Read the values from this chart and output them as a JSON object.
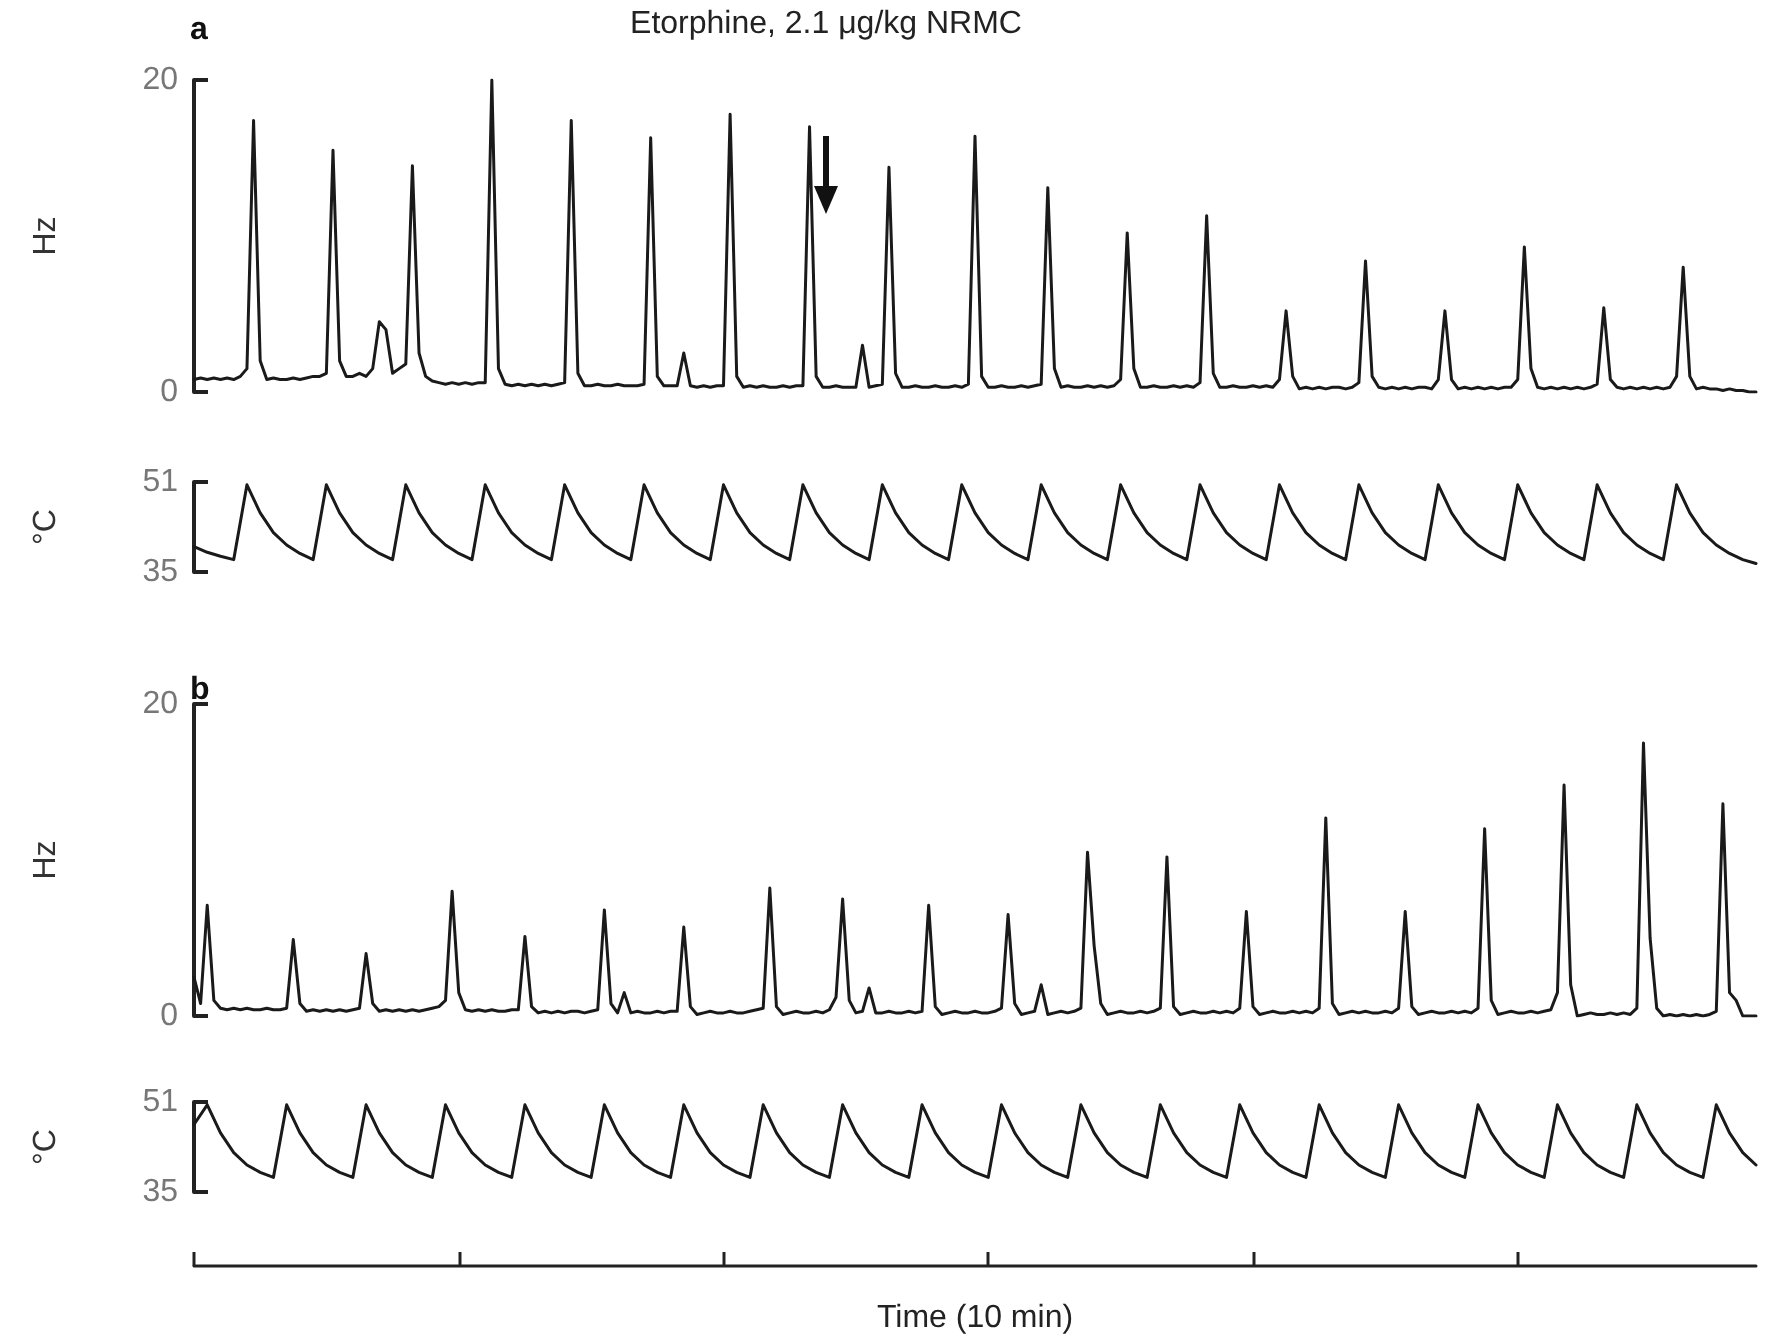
{
  "chart_data": [
    {
      "type": "line",
      "title": "a",
      "ylabel": "Hz",
      "color": "#1a1a1a",
      "line_style": "solid",
      "grid": false,
      "tick_labels": "y",
      "ylim": [
        0,
        20
      ],
      "yticks": [
        0,
        20
      ],
      "annotations": [
        "Etorphine, 2.1 μg/kg NRMC"
      ],
      "categories": [
        null,
        null,
        null,
        null,
        null,
        null,
        null,
        null,
        null,
        null,
        null,
        null,
        null,
        null,
        null,
        null,
        null,
        null,
        null,
        null,
        null,
        null,
        null,
        null,
        null,
        null,
        null,
        null,
        null,
        null,
        null,
        null,
        null,
        null,
        null,
        null,
        null,
        null,
        null,
        null,
        null,
        null,
        null,
        null,
        null,
        null,
        null,
        null,
        null,
        null,
        null,
        null,
        null,
        null,
        null,
        null,
        null,
        null,
        null,
        null,
        null,
        null,
        null,
        null,
        null,
        null,
        null,
        null,
        null,
        null,
        null,
        null,
        null,
        null,
        null,
        null,
        null,
        null,
        null,
        null,
        null,
        null,
        null,
        null,
        null,
        null,
        null,
        null,
        null,
        null,
        null,
        null,
        null,
        null,
        null,
        null,
        null,
        null,
        null,
        null,
        null,
        null,
        null,
        null,
        null,
        null,
        null,
        null,
        null,
        null,
        null,
        null,
        null,
        null,
        null,
        null,
        null,
        null,
        null,
        null,
        null,
        null,
        null,
        null,
        null,
        null,
        null,
        null,
        null,
        null,
        null,
        null,
        null,
        null,
        null,
        null,
        null,
        null,
        null,
        null,
        null,
        null,
        null,
        null,
        null,
        null,
        null,
        null,
        null,
        null,
        null,
        null,
        null,
        null,
        null,
        null,
        null,
        null,
        null,
        null,
        null,
        null,
        null,
        null,
        null,
        null,
        null,
        null,
        null,
        null,
        null,
        null,
        null,
        null,
        null,
        null,
        null,
        null,
        null,
        null,
        null,
        null,
        null,
        null,
        null,
        null,
        null,
        null,
        null,
        null,
        null,
        null,
        null,
        null,
        null,
        null,
        null,
        null,
        null,
        null,
        null,
        null,
        null,
        null,
        null,
        null,
        null,
        null,
        null,
        null,
        null,
        null,
        null,
        null,
        null,
        null,
        null,
        null,
        null,
        null,
        null,
        null,
        null,
        null,
        null,
        null,
        null,
        null,
        null,
        null,
        null,
        null,
        null,
        null,
        null,
        null,
        null
      ],
      "values": [
        0.8,
        0.9,
        0.8,
        0.9,
        0.8,
        0.9,
        0.8,
        1.0,
        1.5,
        17.4,
        2.0,
        0.8,
        0.9,
        0.8,
        0.8,
        0.9,
        0.8,
        0.9,
        1.0,
        1.0,
        1.2,
        15.5,
        2.0,
        1.0,
        1.0,
        1.2,
        1.0,
        1.5,
        4.5,
        4.0,
        1.2,
        1.5,
        1.8,
        14.5,
        2.5,
        1.0,
        0.7,
        0.6,
        0.5,
        0.6,
        0.5,
        0.6,
        0.5,
        0.6,
        0.6,
        20,
        1.5,
        0.5,
        0.4,
        0.5,
        0.4,
        0.5,
        0.4,
        0.5,
        0.4,
        0.5,
        0.6,
        17.4,
        1.2,
        0.4,
        0.4,
        0.5,
        0.4,
        0.4,
        0.5,
        0.4,
        0.4,
        0.4,
        0.5,
        16.3,
        1.0,
        0.4,
        0.4,
        0.4,
        2.5,
        0.4,
        0.3,
        0.4,
        0.3,
        0.4,
        0.4,
        17.8,
        1.0,
        0.3,
        0.4,
        0.3,
        0.4,
        0.3,
        0.3,
        0.4,
        0.3,
        0.4,
        0.4,
        17.0,
        1.0,
        0.3,
        0.3,
        0.4,
        0.3,
        0.3,
        0.3,
        3.0,
        0.3,
        0.4,
        0.5,
        14.4,
        1.2,
        0.3,
        0.3,
        0.4,
        0.3,
        0.3,
        0.4,
        0.3,
        0.3,
        0.4,
        0.3,
        0.5,
        16.4,
        1.0,
        0.3,
        0.3,
        0.4,
        0.3,
        0.3,
        0.4,
        0.3,
        0.4,
        0.5,
        13.1,
        1.5,
        0.3,
        0.4,
        0.3,
        0.3,
        0.4,
        0.3,
        0.4,
        0.3,
        0.4,
        0.8,
        10.2,
        1.5,
        0.3,
        0.3,
        0.4,
        0.3,
        0.3,
        0.4,
        0.3,
        0.4,
        0.3,
        0.6,
        11.3,
        1.2,
        0.3,
        0.3,
        0.4,
        0.3,
        0.3,
        0.4,
        0.3,
        0.4,
        0.3,
        0.8,
        5.2,
        1.0,
        0.2,
        0.3,
        0.2,
        0.3,
        0.2,
        0.3,
        0.3,
        0.2,
        0.3,
        0.6,
        8.4,
        1.0,
        0.3,
        0.2,
        0.3,
        0.2,
        0.3,
        0.2,
        0.3,
        0.3,
        0.2,
        0.8,
        5.2,
        0.8,
        0.2,
        0.3,
        0.2,
        0.3,
        0.2,
        0.3,
        0.2,
        0.3,
        0.3,
        0.8,
        9.3,
        1.5,
        0.3,
        0.2,
        0.3,
        0.2,
        0.3,
        0.2,
        0.3,
        0.2,
        0.3,
        0.5,
        5.4,
        0.8,
        0.3,
        0.2,
        0.3,
        0.2,
        0.3,
        0.2,
        0.3,
        0.2,
        0.3,
        1.0,
        8.0,
        1.0,
        0.2,
        0.3,
        0.2,
        0.2,
        0.1,
        0.2,
        0.1,
        0.1,
        0.0,
        0.0
      ]
    },
    {
      "type": "line",
      "ylabel": "°C",
      "color": "#1a1a1a",
      "line_style": "solid",
      "grid": false,
      "tick_labels": "y",
      "ylim": [
        35,
        51
      ],
      "yticks": [
        35,
        51
      ],
      "categories": [
        null,
        null,
        null,
        null,
        null,
        null,
        null,
        null,
        null,
        null,
        null,
        null,
        null,
        null,
        null,
        null,
        null,
        null,
        null,
        null,
        null,
        null,
        null,
        null,
        null,
        null,
        null,
        null,
        null,
        null,
        null,
        null,
        null,
        null,
        null,
        null,
        null,
        null,
        null,
        null,
        null,
        null,
        null,
        null,
        null,
        null,
        null,
        null,
        null,
        null,
        null,
        null,
        null,
        null,
        null,
        null,
        null,
        null,
        null,
        null,
        null,
        null,
        null,
        null,
        null,
        null,
        null,
        null,
        null,
        null,
        null,
        null,
        null,
        null,
        null,
        null,
        null,
        null,
        null,
        null,
        null,
        null,
        null,
        null,
        null,
        null,
        null,
        null,
        null,
        null,
        null,
        null,
        null,
        null,
        null,
        null,
        null,
        null,
        null,
        null,
        null,
        null,
        null,
        null,
        null,
        null,
        null,
        null,
        null,
        null,
        null,
        null,
        null,
        null,
        null,
        null,
        null,
        null,
        null
      ],
      "values": [
        39.5,
        38.5,
        37.8,
        37.2,
        50.5,
        45.5,
        42,
        39.8,
        38.3,
        37.2,
        50.5,
        45.5,
        42,
        39.8,
        38.3,
        37.2,
        50.5,
        45.5,
        42,
        39.8,
        38.3,
        37.2,
        50.5,
        45.5,
        42,
        39.8,
        38.3,
        37.2,
        50.5,
        45.5,
        42,
        39.8,
        38.3,
        37.2,
        50.5,
        45.5,
        42,
        39.8,
        38.3,
        37.2,
        50.5,
        45.5,
        42,
        39.8,
        38.3,
        37.2,
        50.5,
        45.5,
        42,
        39.8,
        38.3,
        37.2,
        50.5,
        45.5,
        42,
        39.8,
        38.3,
        37.2,
        50.5,
        45.5,
        42,
        39.8,
        38.3,
        37.2,
        50.5,
        45.5,
        42,
        39.8,
        38.3,
        37.2,
        50.5,
        45.5,
        42,
        39.8,
        38.3,
        37.2,
        50.5,
        45.5,
        42,
        39.8,
        38.3,
        37.2,
        50.5,
        45.5,
        42,
        39.8,
        38.3,
        37.2,
        50.5,
        45.5,
        42,
        39.8,
        38.3,
        37.2,
        50.5,
        45.5,
        42,
        39.8,
        38.3,
        37.2,
        50.5,
        45.5,
        42,
        39.8,
        38.3,
        37.2,
        50.5,
        45.5,
        42,
        39.8,
        38.3,
        37.2,
        50.5,
        45.5,
        42,
        39.8,
        38.3,
        37.2,
        36.5
      ]
    },
    {
      "type": "line",
      "title": "b",
      "ylabel": "Hz",
      "color": "#1a1a1a",
      "line_style": "solid",
      "grid": false,
      "tick_labels": "y",
      "ylim": [
        0,
        20
      ],
      "yticks": [
        0,
        20
      ],
      "categories": [
        null,
        null,
        null,
        null,
        null,
        null,
        null,
        null,
        null,
        null,
        null,
        null,
        null,
        null,
        null,
        null,
        null,
        null,
        null,
        null,
        null,
        null,
        null,
        null,
        null,
        null,
        null,
        null,
        null,
        null,
        null,
        null,
        null,
        null,
        null,
        null,
        null,
        null,
        null,
        null,
        null,
        null,
        null,
        null,
        null,
        null,
        null,
        null,
        null,
        null,
        null,
        null,
        null,
        null,
        null,
        null,
        null,
        null,
        null,
        null,
        null,
        null,
        null,
        null,
        null,
        null,
        null,
        null,
        null,
        null,
        null,
        null,
        null,
        null,
        null,
        null,
        null,
        null,
        null,
        null,
        null,
        null,
        null,
        null,
        null,
        null,
        null,
        null,
        null,
        null,
        null,
        null,
        null,
        null,
        null,
        null,
        null,
        null,
        null,
        null,
        null,
        null,
        null,
        null,
        null,
        null,
        null,
        null,
        null,
        null,
        null,
        null,
        null,
        null,
        null,
        null,
        null,
        null,
        null,
        null,
        null,
        null,
        null,
        null,
        null,
        null,
        null,
        null,
        null,
        null,
        null,
        null,
        null,
        null,
        null,
        null,
        null,
        null,
        null,
        null,
        null,
        null,
        null,
        null,
        null,
        null,
        null,
        null,
        null,
        null,
        null,
        null,
        null,
        null,
        null,
        null,
        null,
        null,
        null,
        null,
        null,
        null,
        null,
        null,
        null,
        null,
        null,
        null,
        null,
        null,
        null,
        null,
        null,
        null,
        null,
        null,
        null,
        null,
        null,
        null,
        null,
        null,
        null,
        null,
        null,
        null,
        null,
        null,
        null,
        null,
        null,
        null,
        null,
        null,
        null,
        null,
        null,
        null,
        null,
        null,
        null,
        null,
        null,
        null,
        null,
        null,
        null,
        null,
        null,
        null,
        null,
        null,
        null,
        null,
        null,
        null,
        null,
        null,
        null,
        null,
        null,
        null,
        null,
        null,
        null,
        null,
        null,
        null,
        null,
        null,
        null,
        null,
        null,
        null,
        null,
        null,
        null
      ],
      "values": [
        2.5,
        0.8,
        7.1,
        1.0,
        0.5,
        0.4,
        0.5,
        0.4,
        0.5,
        0.4,
        0.4,
        0.5,
        0.4,
        0.4,
        0.5,
        4.9,
        0.8,
        0.3,
        0.4,
        0.3,
        0.4,
        0.3,
        0.4,
        0.3,
        0.4,
        0.5,
        4.0,
        0.8,
        0.3,
        0.4,
        0.3,
        0.4,
        0.3,
        0.4,
        0.3,
        0.4,
        0.5,
        0.6,
        1.0,
        8.0,
        1.5,
        0.4,
        0.3,
        0.4,
        0.3,
        0.4,
        0.3,
        0.3,
        0.4,
        0.4,
        5.1,
        0.6,
        0.2,
        0.3,
        0.2,
        0.3,
        0.2,
        0.3,
        0.3,
        0.2,
        0.3,
        0.4,
        6.8,
        0.8,
        0.2,
        1.5,
        0.2,
        0.3,
        0.2,
        0.2,
        0.3,
        0.2,
        0.3,
        0.3,
        5.7,
        0.6,
        0.1,
        0.2,
        0.3,
        0.2,
        0.2,
        0.3,
        0.2,
        0.2,
        0.3,
        0.4,
        0.5,
        8.2,
        0.6,
        0.1,
        0.2,
        0.3,
        0.2,
        0.2,
        0.3,
        0.2,
        0.4,
        1.2,
        7.5,
        1.0,
        0.2,
        0.3,
        1.8,
        0.2,
        0.2,
        0.3,
        0.2,
        0.2,
        0.3,
        0.2,
        0.3,
        7.1,
        0.6,
        0.1,
        0.2,
        0.3,
        0.2,
        0.2,
        0.3,
        0.2,
        0.2,
        0.3,
        0.5,
        6.5,
        0.8,
        0.1,
        0.2,
        0.3,
        2.0,
        0.1,
        0.2,
        0.3,
        0.2,
        0.3,
        0.5,
        10.5,
        4.5,
        0.8,
        0.1,
        0.2,
        0.3,
        0.2,
        0.2,
        0.3,
        0.2,
        0.3,
        0.5,
        10.2,
        0.6,
        0.1,
        0.2,
        0.3,
        0.2,
        0.2,
        0.3,
        0.2,
        0.3,
        0.2,
        0.5,
        6.7,
        0.6,
        0.1,
        0.2,
        0.3,
        0.2,
        0.2,
        0.3,
        0.2,
        0.3,
        0.2,
        0.5,
        12.7,
        0.8,
        0.1,
        0.2,
        0.3,
        0.2,
        0.3,
        0.2,
        0.2,
        0.3,
        0.2,
        0.5,
        6.7,
        0.6,
        0.1,
        0.2,
        0.3,
        0.2,
        0.2,
        0.3,
        0.2,
        0.3,
        0.2,
        0.5,
        12.0,
        1.0,
        0.1,
        0.2,
        0.3,
        0.2,
        0.2,
        0.3,
        0.2,
        0.3,
        0.4,
        1.5,
        14.8,
        2.0,
        0.0,
        0.1,
        0.2,
        0.1,
        0.1,
        0.2,
        0.1,
        0.2,
        0.1,
        0.5,
        17.5,
        5.0,
        0.5,
        0.0,
        0.1,
        0.0,
        0.1,
        0.0,
        0.1,
        0.0,
        0.1,
        0.3,
        13.6,
        1.5,
        1.0,
        0.0,
        0.0,
        0.0
      ]
    },
    {
      "type": "line",
      "ylabel": "°C",
      "xlabel": "Time (10 min)",
      "color": "#1a1a1a",
      "line_style": "solid",
      "grid": false,
      "tick_labels": "y",
      "ylim": [
        35,
        51
      ],
      "yticks": [
        35,
        51
      ],
      "categories": [
        null,
        null,
        null,
        null,
        null,
        null,
        null,
        null,
        null,
        null,
        null,
        null,
        null,
        null,
        null,
        null,
        null,
        null,
        null,
        null,
        null,
        null,
        null,
        null,
        null,
        null,
        null,
        null,
        null,
        null,
        null,
        null,
        null,
        null,
        null,
        null,
        null,
        null,
        null,
        null,
        null,
        null,
        null,
        null,
        null,
        null,
        null,
        null,
        null,
        null,
        null,
        null,
        null,
        null,
        null,
        null,
        null,
        null,
        null,
        null,
        null,
        null,
        null,
        null,
        null,
        null,
        null,
        null,
        null,
        null,
        null,
        null,
        null,
        null,
        null,
        null,
        null,
        null,
        null,
        null,
        null,
        null,
        null,
        null,
        null,
        null,
        null,
        null,
        null,
        null,
        null,
        null,
        null,
        null,
        null,
        null,
        null,
        null,
        null,
        null,
        null,
        null,
        null,
        null,
        null,
        null,
        null,
        null,
        null,
        null,
        null,
        null,
        null,
        null,
        null,
        null,
        null,
        null,
        null
      ],
      "values": [
        47,
        50.5,
        45.5,
        42,
        39.8,
        38.5,
        37.6,
        50.5,
        45.5,
        42,
        39.8,
        38.5,
        37.6,
        50.5,
        45.5,
        42,
        39.8,
        38.5,
        37.6,
        50.5,
        45.5,
        42,
        39.8,
        38.5,
        37.6,
        50.5,
        45.5,
        42,
        39.8,
        38.5,
        37.6,
        50.5,
        45.5,
        42,
        39.8,
        38.5,
        37.6,
        50.5,
        45.5,
        42,
        39.8,
        38.5,
        37.6,
        50.5,
        45.5,
        42,
        39.8,
        38.5,
        37.6,
        50.5,
        45.5,
        42,
        39.8,
        38.5,
        37.6,
        50.5,
        45.5,
        42,
        39.8,
        38.5,
        37.6,
        50.5,
        45.5,
        42,
        39.8,
        38.5,
        37.6,
        50.5,
        45.5,
        42,
        39.8,
        38.5,
        37.6,
        50.5,
        45.5,
        42,
        39.8,
        38.5,
        37.6,
        50.5,
        45.5,
        42,
        39.8,
        38.5,
        37.6,
        50.5,
        45.5,
        42,
        39.8,
        38.5,
        37.6,
        50.5,
        45.5,
        42,
        39.8,
        38.5,
        37.6,
        50.5,
        45.5,
        42,
        39.8,
        38.5,
        37.6,
        50.5,
        45.5,
        42,
        39.8,
        38.5,
        37.6,
        50.5,
        45.5,
        42,
        39.8,
        38.5,
        37.6,
        50.5,
        45.5,
        42,
        39.8
      ]
    }
  ]
}
